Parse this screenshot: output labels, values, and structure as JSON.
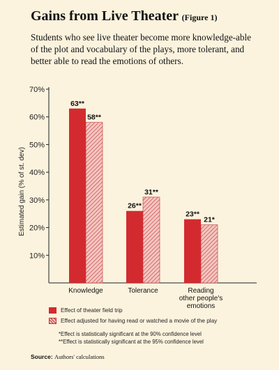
{
  "title": "Gains from Live Theater",
  "figure_label": "(Figure 1)",
  "subtitle": "Students who see live theater become more knowledge-able of the plot and vocabulary of the plays, more tolerant, and better able to read the emotions of others.",
  "colors": {
    "series1": "#d32a30",
    "series2_fill": "#f3c6c0",
    "series2_stroke": "#c2353a",
    "background": "#fbf3de"
  },
  "chart_data": {
    "type": "bar",
    "title": "Gains from Live Theater",
    "ylabel": "Estimated gain (% of st. dev)",
    "xlabel": "",
    "ylim": [
      0,
      70
    ],
    "yticks": [
      "10%",
      "20%",
      "30%",
      "40%",
      "50%",
      "60%",
      "70%"
    ],
    "ytick_values": [
      10,
      20,
      30,
      40,
      50,
      60,
      70
    ],
    "categories": [
      "Knowledge",
      "Tolerance",
      "Reading other people's emotions"
    ],
    "category_lines": [
      [
        "Knowledge"
      ],
      [
        "Tolerance"
      ],
      [
        "Reading",
        "other people's",
        "emotions"
      ]
    ],
    "series": [
      {
        "name": "Effect of theater field trip",
        "values": [
          63,
          26,
          23
        ],
        "labels": [
          "63**",
          "26**",
          "23**"
        ]
      },
      {
        "name": "Effect adjusted for having read or watched a movie of the play",
        "values": [
          58,
          31,
          21
        ],
        "labels": [
          "58**",
          "31**",
          "21*"
        ]
      }
    ],
    "grid": false,
    "legend_position": "bottom"
  },
  "legend": {
    "series1": "Effect of theater field trip",
    "series2": "Effect adjusted for having read or watched a movie of the play"
  },
  "notes": {
    "note1": "*Effect is statistically significant at the 90% confidence level",
    "note2": "**Effect is statistically significant at the 95% confidence level"
  },
  "source": {
    "label": "Source:",
    "text": "Authors' calculations"
  }
}
